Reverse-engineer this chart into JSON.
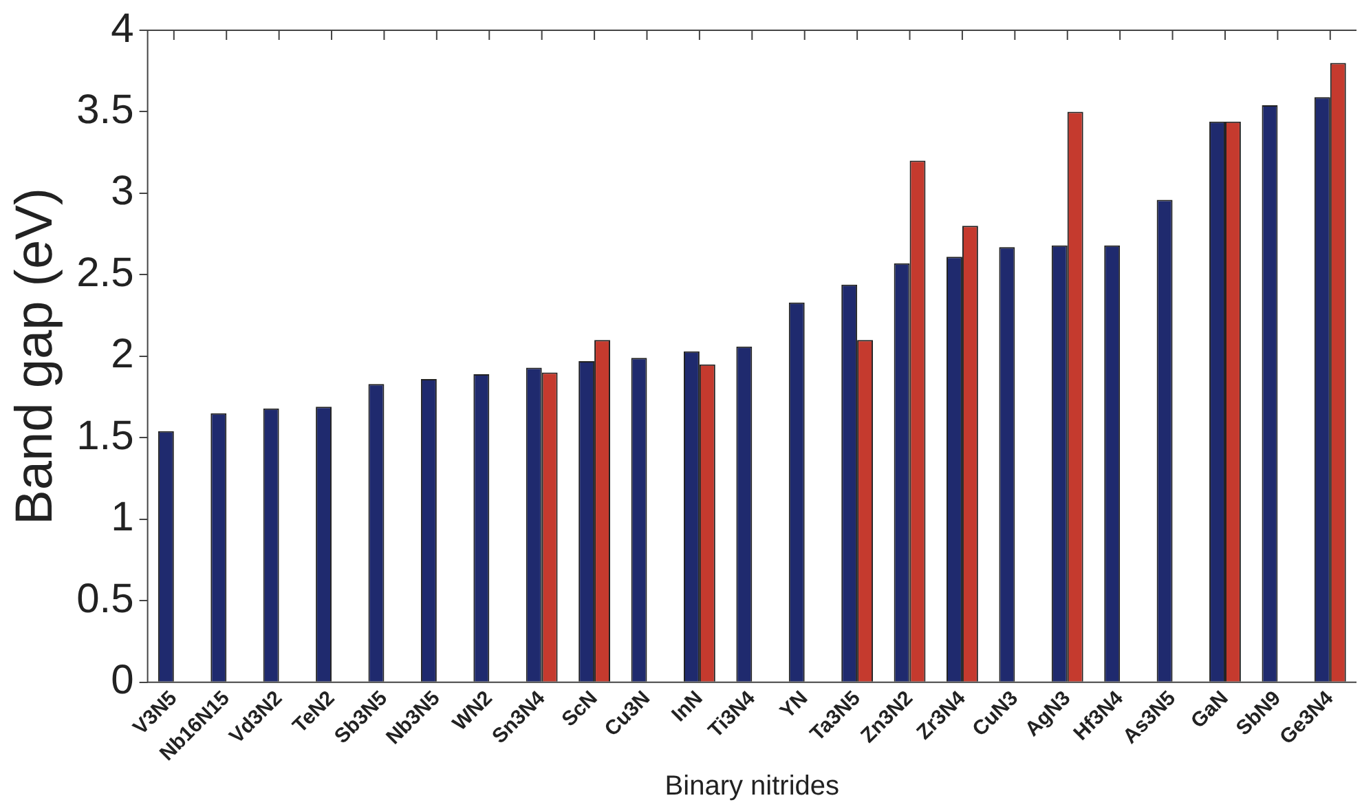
{
  "chart_data": {
    "type": "bar",
    "xlabel": "Binary nitrides",
    "ylabel": "Band gap (eV)",
    "categories": [
      "V3N5",
      "Nb16N15",
      "Vd3N2",
      "TeN2",
      "Sb3N5",
      "Nb3N5",
      "WN2",
      "Sn3N4",
      "ScN",
      "Cu3N",
      "InN",
      "Ti3N4",
      "YN",
      "Ta3N5",
      "Zn3N2",
      "Zr3N4",
      "CuN3",
      "AgN3",
      "Hf3N4",
      "As3N5",
      "GaN",
      "SbN9",
      "Ge3N4"
    ],
    "series": [
      {
        "color": "#1f2a6e",
        "values": [
          1.54,
          1.65,
          1.68,
          1.69,
          1.83,
          1.86,
          1.89,
          1.93,
          1.97,
          1.99,
          2.03,
          2.06,
          2.33,
          2.44,
          2.57,
          2.61,
          2.67,
          2.68,
          2.68,
          2.96,
          3.44,
          3.54,
          3.59
        ]
      },
      {
        "color": "#c53a2e",
        "values": [
          null,
          null,
          null,
          null,
          null,
          null,
          null,
          1.9,
          2.1,
          null,
          1.95,
          null,
          null,
          2.1,
          3.2,
          2.8,
          null,
          3.5,
          null,
          null,
          3.44,
          null,
          3.8
        ]
      }
    ],
    "ylim": [
      0,
      4
    ],
    "yticks": [
      0,
      0.5,
      1,
      1.5,
      2,
      2.5,
      3,
      3.5,
      4
    ],
    "grid": false,
    "legend": false
  }
}
